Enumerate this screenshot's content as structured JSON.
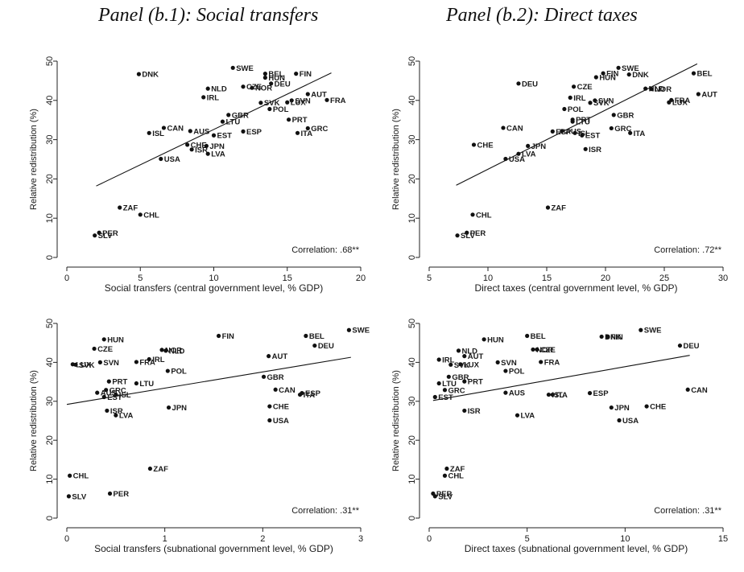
{
  "panel_titles": {
    "b1": "Panel (b.1): Social transfers",
    "b2": "Panel (b.2): Direct taxes"
  },
  "chart_data": [
    {
      "type": "scatter",
      "id": "c1",
      "xlabel": "Social transfers (central government level, % GDP)",
      "ylabel": "Relative redistribution (%)",
      "xlim": [
        0,
        20
      ],
      "ylim": [
        0,
        50
      ],
      "xticks": [
        0,
        5,
        10,
        15,
        20
      ],
      "yticks": [
        0,
        10,
        20,
        30,
        40,
        50
      ],
      "annotation": "Correlation: .68**",
      "fit_line": [
        [
          2,
          18.2
        ],
        [
          18,
          47
        ]
      ],
      "points": [
        {
          "label": "SWE",
          "x": 11.3,
          "y": 48.3
        },
        {
          "label": "FIN",
          "x": 15.6,
          "y": 46.8
        },
        {
          "label": "BEL",
          "x": 13.5,
          "y": 46.8
        },
        {
          "label": "HUN",
          "x": 13.5,
          "y": 45.8
        },
        {
          "label": "DNK",
          "x": 4.9,
          "y": 46.7
        },
        {
          "label": "DEU",
          "x": 13.9,
          "y": 44.3
        },
        {
          "label": "CZE",
          "x": 12.0,
          "y": 43.5
        },
        {
          "label": "NLD",
          "x": 9.6,
          "y": 43.0
        },
        {
          "label": "NOR",
          "x": 12.6,
          "y": 43.2
        },
        {
          "label": "AUT",
          "x": 16.4,
          "y": 41.6
        },
        {
          "label": "IRL",
          "x": 9.3,
          "y": 40.8
        },
        {
          "label": "FRA",
          "x": 17.7,
          "y": 40.1
        },
        {
          "label": "SVN",
          "x": 15.3,
          "y": 40.0
        },
        {
          "label": "LUX",
          "x": 15.0,
          "y": 39.5
        },
        {
          "label": "SVK",
          "x": 13.2,
          "y": 39.4
        },
        {
          "label": "POL",
          "x": 13.8,
          "y": 37.8
        },
        {
          "label": "GBR",
          "x": 11.0,
          "y": 36.3
        },
        {
          "label": "PRT",
          "x": 15.1,
          "y": 35.1
        },
        {
          "label": "LTU",
          "x": 10.6,
          "y": 34.6
        },
        {
          "label": "CAN",
          "x": 6.6,
          "y": 33.0
        },
        {
          "label": "GRC",
          "x": 16.4,
          "y": 32.9
        },
        {
          "label": "AUS",
          "x": 8.4,
          "y": 32.2
        },
        {
          "label": "ESP",
          "x": 12.0,
          "y": 32.1
        },
        {
          "label": "ISL",
          "x": 5.6,
          "y": 31.7
        },
        {
          "label": "ITA",
          "x": 15.7,
          "y": 31.7
        },
        {
          "label": "EST",
          "x": 10.0,
          "y": 31.1
        },
        {
          "label": "CHE",
          "x": 8.2,
          "y": 28.7
        },
        {
          "label": "JPN",
          "x": 9.5,
          "y": 28.4
        },
        {
          "label": "ISR",
          "x": 8.5,
          "y": 27.5
        },
        {
          "label": "LVA",
          "x": 9.6,
          "y": 26.4
        },
        {
          "label": "USA",
          "x": 6.4,
          "y": 25.1
        },
        {
          "label": "ZAF",
          "x": 3.6,
          "y": 12.7
        },
        {
          "label": "CHL",
          "x": 5.0,
          "y": 10.9
        },
        {
          "label": "PER",
          "x": 2.2,
          "y": 6.3
        },
        {
          "label": "SLV",
          "x": 1.9,
          "y": 5.6
        }
      ]
    },
    {
      "type": "scatter",
      "id": "c2",
      "xlabel": "Direct taxes (central government level, % GDP)",
      "ylabel": "Relative redistribution (%)",
      "xlim": [
        5,
        30
      ],
      "ylim": [
        0,
        50
      ],
      "xticks": [
        5,
        10,
        15,
        20,
        25,
        30
      ],
      "yticks": [
        0,
        10,
        20,
        30,
        40,
        50
      ],
      "annotation": "Correlation: .72**",
      "fit_line": [
        [
          7.3,
          18.4
        ],
        [
          27.8,
          49.3
        ]
      ],
      "points": [
        {
          "label": "SWE",
          "x": 21.1,
          "y": 48.3
        },
        {
          "label": "BEL",
          "x": 27.5,
          "y": 46.9
        },
        {
          "label": "FIN",
          "x": 19.8,
          "y": 46.9
        },
        {
          "label": "DNK",
          "x": 22.0,
          "y": 46.6
        },
        {
          "label": "HUN",
          "x": 19.2,
          "y": 45.9
        },
        {
          "label": "DEU",
          "x": 12.6,
          "y": 44.3
        },
        {
          "label": "CZE",
          "x": 17.3,
          "y": 43.5
        },
        {
          "label": "NLD",
          "x": 23.4,
          "y": 43.0
        },
        {
          "label": "NOR",
          "x": 23.9,
          "y": 42.9
        },
        {
          "label": "AUT",
          "x": 27.9,
          "y": 41.6
        },
        {
          "label": "IRL",
          "x": 17.0,
          "y": 40.7
        },
        {
          "label": "FRA",
          "x": 25.6,
          "y": 40.1
        },
        {
          "label": "SVN",
          "x": 19.1,
          "y": 40.0
        },
        {
          "label": "LUX",
          "x": 25.4,
          "y": 39.5
        },
        {
          "label": "SVK",
          "x": 18.7,
          "y": 39.4
        },
        {
          "label": "POL",
          "x": 16.5,
          "y": 37.8
        },
        {
          "label": "GBR",
          "x": 20.7,
          "y": 36.3
        },
        {
          "label": "PRT",
          "x": 17.2,
          "y": 35.1
        },
        {
          "label": "LTU",
          "x": 17.2,
          "y": 34.6
        },
        {
          "label": "CAN",
          "x": 11.3,
          "y": 33.0
        },
        {
          "label": "GRC",
          "x": 20.5,
          "y": 32.9
        },
        {
          "label": "ESP",
          "x": 15.5,
          "y": 32.1
        },
        {
          "label": "AUS",
          "x": 16.3,
          "y": 32.2
        },
        {
          "label": "ISL",
          "x": 17.4,
          "y": 31.7
        },
        {
          "label": "ITA",
          "x": 22.1,
          "y": 31.7
        },
        {
          "label": "EST",
          "x": 18.0,
          "y": 31.1
        },
        {
          "label": "CHE",
          "x": 8.8,
          "y": 28.7
        },
        {
          "label": "JPN",
          "x": 13.4,
          "y": 28.4
        },
        {
          "label": "ISR",
          "x": 18.3,
          "y": 27.6
        },
        {
          "label": "LVA",
          "x": 12.6,
          "y": 26.4
        },
        {
          "label": "USA",
          "x": 11.5,
          "y": 25.1
        },
        {
          "label": "ZAF",
          "x": 15.1,
          "y": 12.7
        },
        {
          "label": "CHL",
          "x": 8.7,
          "y": 10.9
        },
        {
          "label": "PER",
          "x": 8.2,
          "y": 6.3
        },
        {
          "label": "SLV",
          "x": 7.4,
          "y": 5.6
        }
      ]
    },
    {
      "type": "scatter",
      "id": "c3",
      "xlabel": "Social transfers (subnational government level, % GDP)",
      "ylabel": "Relative redistribution (%)",
      "xlim": [
        0,
        3
      ],
      "ylim": [
        0,
        50
      ],
      "xticks": [
        0,
        1,
        2,
        3
      ],
      "yticks": [
        0,
        10,
        20,
        30,
        40,
        50
      ],
      "annotation": "Correlation: .31**",
      "fit_line": [
        [
          0,
          29.2
        ],
        [
          2.9,
          41.3
        ]
      ],
      "points": [
        {
          "label": "SWE",
          "x": 2.88,
          "y": 48.3
        },
        {
          "label": "FIN",
          "x": 1.55,
          "y": 46.8
        },
        {
          "label": "BEL",
          "x": 2.44,
          "y": 46.8
        },
        {
          "label": "HUN",
          "x": 0.38,
          "y": 45.9
        },
        {
          "label": "DEU",
          "x": 2.53,
          "y": 44.3
        },
        {
          "label": "CZE",
          "x": 0.28,
          "y": 43.5
        },
        {
          "label": "NOR",
          "x": 0.97,
          "y": 43.2
        },
        {
          "label": "NLD",
          "x": 1.01,
          "y": 43.0
        },
        {
          "label": "AUT",
          "x": 2.06,
          "y": 41.6
        },
        {
          "label": "IRL",
          "x": 0.84,
          "y": 40.8
        },
        {
          "label": "FRA",
          "x": 0.71,
          "y": 40.1
        },
        {
          "label": "SVN",
          "x": 0.34,
          "y": 40.0
        },
        {
          "label": "LUX",
          "x": 0.06,
          "y": 39.5
        },
        {
          "label": "SVK",
          "x": 0.09,
          "y": 39.4
        },
        {
          "label": "POL",
          "x": 1.03,
          "y": 37.8
        },
        {
          "label": "GBR",
          "x": 2.01,
          "y": 36.3
        },
        {
          "label": "PRT",
          "x": 0.43,
          "y": 35.1
        },
        {
          "label": "LTU",
          "x": 0.71,
          "y": 34.6
        },
        {
          "label": "CAN",
          "x": 2.13,
          "y": 33.0
        },
        {
          "label": "GRC",
          "x": 0.4,
          "y": 32.9
        },
        {
          "label": "ESP",
          "x": 2.4,
          "y": 32.1
        },
        {
          "label": "AUS",
          "x": 0.31,
          "y": 32.2
        },
        {
          "label": "ITA",
          "x": 2.38,
          "y": 31.7
        },
        {
          "label": "ISL",
          "x": 0.5,
          "y": 31.7
        },
        {
          "label": "EST",
          "x": 0.38,
          "y": 31.1
        },
        {
          "label": "CHE",
          "x": 2.07,
          "y": 28.7
        },
        {
          "label": "JPN",
          "x": 1.04,
          "y": 28.4
        },
        {
          "label": "ISR",
          "x": 0.41,
          "y": 27.6
        },
        {
          "label": "LVA",
          "x": 0.5,
          "y": 26.4
        },
        {
          "label": "USA",
          "x": 2.07,
          "y": 25.1
        },
        {
          "label": "ZAF",
          "x": 0.85,
          "y": 12.7
        },
        {
          "label": "CHL",
          "x": 0.03,
          "y": 10.9
        },
        {
          "label": "PER",
          "x": 0.44,
          "y": 6.3
        },
        {
          "label": "SLV",
          "x": 0.02,
          "y": 5.6
        }
      ]
    },
    {
      "type": "scatter",
      "id": "c4",
      "xlabel": "Direct taxes (subnational government level, % GDP)",
      "ylabel": "Relative redistribution (%)",
      "xlim": [
        0,
        15
      ],
      "ylim": [
        0,
        50
      ],
      "xticks": [
        0,
        5,
        10,
        15
      ],
      "yticks": [
        0,
        10,
        20,
        30,
        40,
        50
      ],
      "annotation": "Correlation: .31**",
      "fit_line": [
        [
          0.2,
          30.2
        ],
        [
          13.3,
          41.8
        ]
      ],
      "points": [
        {
          "label": "SWE",
          "x": 10.8,
          "y": 48.3
        },
        {
          "label": "BEL",
          "x": 5.0,
          "y": 46.8
        },
        {
          "label": "DNK",
          "x": 8.8,
          "y": 46.6
        },
        {
          "label": "FIN",
          "x": 9.1,
          "y": 46.6
        },
        {
          "label": "HUN",
          "x": 2.8,
          "y": 45.9
        },
        {
          "label": "DEU",
          "x": 12.8,
          "y": 44.3
        },
        {
          "label": "NOR",
          "x": 5.3,
          "y": 43.3
        },
        {
          "label": "CZE",
          "x": 5.5,
          "y": 43.3
        },
        {
          "label": "NLD",
          "x": 1.5,
          "y": 43.0
        },
        {
          "label": "AUT",
          "x": 1.8,
          "y": 41.6
        },
        {
          "label": "IRL",
          "x": 0.5,
          "y": 40.7
        },
        {
          "label": "FRA",
          "x": 5.7,
          "y": 40.1
        },
        {
          "label": "SVN",
          "x": 3.5,
          "y": 40.0
        },
        {
          "label": "SVK",
          "x": 1.1,
          "y": 39.4
        },
        {
          "label": "LUX",
          "x": 1.6,
          "y": 39.5
        },
        {
          "label": "POL",
          "x": 3.9,
          "y": 37.8
        },
        {
          "label": "GBR",
          "x": 1.0,
          "y": 36.3
        },
        {
          "label": "PRT",
          "x": 1.8,
          "y": 35.1
        },
        {
          "label": "LTU",
          "x": 0.5,
          "y": 34.6
        },
        {
          "label": "GRC",
          "x": 0.8,
          "y": 32.9
        },
        {
          "label": "CAN",
          "x": 13.2,
          "y": 33.0
        },
        {
          "label": "AUS",
          "x": 3.9,
          "y": 32.2
        },
        {
          "label": "ESP",
          "x": 8.2,
          "y": 32.1
        },
        {
          "label": "ITA",
          "x": 6.3,
          "y": 31.7
        },
        {
          "label": "ISL",
          "x": 6.1,
          "y": 31.7
        },
        {
          "label": "EST",
          "x": 0.3,
          "y": 31.1
        },
        {
          "label": "JPN",
          "x": 9.3,
          "y": 28.4
        },
        {
          "label": "CHE",
          "x": 11.1,
          "y": 28.7
        },
        {
          "label": "ISR",
          "x": 1.8,
          "y": 27.6
        },
        {
          "label": "LVA",
          "x": 4.5,
          "y": 26.4
        },
        {
          "label": "USA",
          "x": 9.7,
          "y": 25.1
        },
        {
          "label": "ZAF",
          "x": 0.9,
          "y": 12.7
        },
        {
          "label": "CHL",
          "x": 0.8,
          "y": 10.9
        },
        {
          "label": "PER",
          "x": 0.2,
          "y": 6.3
        },
        {
          "label": "SLV",
          "x": 0.3,
          "y": 5.6
        }
      ]
    }
  ]
}
